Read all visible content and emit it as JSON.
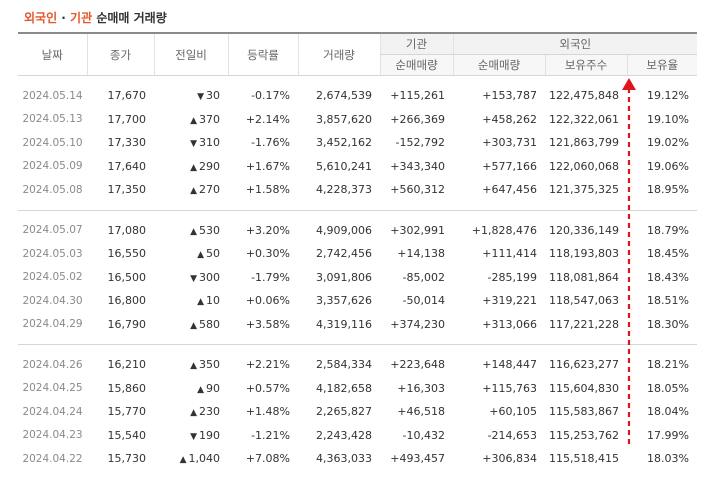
{
  "title": {
    "part1": "외국인",
    "sep": " · ",
    "part2": "기관",
    "part3": " 순매매 거래량"
  },
  "headers": {
    "date": "날짜",
    "close": "종가",
    "change": "전일비",
    "rate": "등락률",
    "volume": "거래량",
    "inst": "기관",
    "foreign": "외국인",
    "inst_net": "순매매량",
    "foreign_net": "순매매량",
    "foreign_hold": "보유주수",
    "foreign_ratio": "보유율"
  },
  "colors": {
    "up": "#d2122e",
    "down": "#1a5fc5",
    "accent": "#e4572a"
  },
  "groups": [
    {
      "rows": [
        {
          "date": "2024.05.14",
          "close": "17,670",
          "dir": "down",
          "change": "30",
          "rate": "-0.17%",
          "volume": "2,674,539",
          "inst": "+115,261",
          "foreign": "+153,787",
          "hold": "122,475,848",
          "ratio": "19.12%"
        },
        {
          "date": "2024.05.13",
          "close": "17,700",
          "dir": "up",
          "change": "370",
          "rate": "+2.14%",
          "volume": "3,857,620",
          "inst": "+266,369",
          "foreign": "+458,262",
          "hold": "122,322,061",
          "ratio": "19.10%"
        },
        {
          "date": "2024.05.10",
          "close": "17,330",
          "dir": "down",
          "change": "310",
          "rate": "-1.76%",
          "volume": "3,452,162",
          "inst": "-152,792",
          "foreign": "+303,731",
          "hold": "121,863,799",
          "ratio": "19.02%"
        },
        {
          "date": "2024.05.09",
          "close": "17,640",
          "dir": "up",
          "change": "290",
          "rate": "+1.67%",
          "volume": "5,610,241",
          "inst": "+343,340",
          "foreign": "+577,166",
          "hold": "122,060,068",
          "ratio": "19.06%"
        },
        {
          "date": "2024.05.08",
          "close": "17,350",
          "dir": "up",
          "change": "270",
          "rate": "+1.58%",
          "volume": "4,228,373",
          "inst": "+560,312",
          "foreign": "+647,456",
          "hold": "121,375,325",
          "ratio": "18.95%"
        }
      ]
    },
    {
      "rows": [
        {
          "date": "2024.05.07",
          "close": "17,080",
          "dir": "up",
          "change": "530",
          "rate": "+3.20%",
          "volume": "4,909,006",
          "inst": "+302,991",
          "foreign": "+1,828,476",
          "hold": "120,336,149",
          "ratio": "18.79%"
        },
        {
          "date": "2024.05.03",
          "close": "16,550",
          "dir": "up",
          "change": "50",
          "rate": "+0.30%",
          "volume": "2,742,456",
          "inst": "+14,138",
          "foreign": "+111,414",
          "hold": "118,193,803",
          "ratio": "18.45%"
        },
        {
          "date": "2024.05.02",
          "close": "16,500",
          "dir": "down",
          "change": "300",
          "rate": "-1.79%",
          "volume": "3,091,806",
          "inst": "-85,002",
          "foreign": "-285,199",
          "hold": "118,081,864",
          "ratio": "18.43%"
        },
        {
          "date": "2024.04.30",
          "close": "16,800",
          "dir": "up",
          "change": "10",
          "rate": "+0.06%",
          "volume": "3,357,626",
          "inst": "-50,014",
          "foreign": "+319,221",
          "hold": "118,547,063",
          "ratio": "18.51%"
        },
        {
          "date": "2024.04.29",
          "close": "16,790",
          "dir": "up",
          "change": "580",
          "rate": "+3.58%",
          "volume": "4,319,116",
          "inst": "+374,230",
          "foreign": "+313,066",
          "hold": "117,221,228",
          "ratio": "18.30%"
        }
      ]
    },
    {
      "rows": [
        {
          "date": "2024.04.26",
          "close": "16,210",
          "dir": "up",
          "change": "350",
          "rate": "+2.21%",
          "volume": "2,584,334",
          "inst": "+223,648",
          "foreign": "+148,447",
          "hold": "116,623,277",
          "ratio": "18.21%"
        },
        {
          "date": "2024.04.25",
          "close": "15,860",
          "dir": "up",
          "change": "90",
          "rate": "+0.57%",
          "volume": "4,182,658",
          "inst": "+16,303",
          "foreign": "+115,763",
          "hold": "115,604,830",
          "ratio": "18.05%"
        },
        {
          "date": "2024.04.24",
          "close": "15,770",
          "dir": "up",
          "change": "230",
          "rate": "+1.48%",
          "volume": "2,265,827",
          "inst": "+46,518",
          "foreign": "+60,105",
          "hold": "115,583,867",
          "ratio": "18.04%"
        },
        {
          "date": "2024.04.23",
          "close": "15,540",
          "dir": "down",
          "change": "190",
          "rate": "-1.21%",
          "volume": "2,243,428",
          "inst": "-10,432",
          "foreign": "-214,653",
          "hold": "115,253,762",
          "ratio": "17.99%"
        },
        {
          "date": "2024.04.22",
          "close": "15,730",
          "dir": "up",
          "change": "1,040",
          "rate": "+7.08%",
          "volume": "4,363,033",
          "inst": "+493,457",
          "foreign": "+306,834",
          "hold": "115,518,415",
          "ratio": "18.03%"
        }
      ]
    }
  ]
}
